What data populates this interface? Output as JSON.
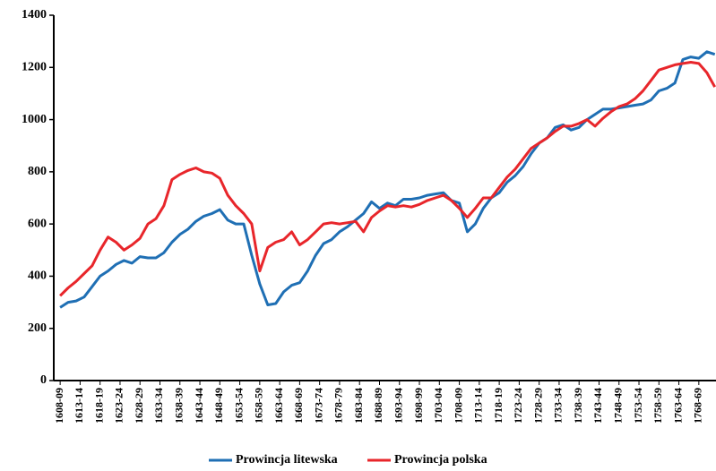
{
  "chart_data": {
    "type": "line",
    "x": [
      1608,
      1610,
      1612,
      1614,
      1616,
      1618,
      1620,
      1622,
      1624,
      1626,
      1628,
      1630,
      1632,
      1634,
      1636,
      1638,
      1640,
      1642,
      1644,
      1646,
      1648,
      1650,
      1652,
      1654,
      1656,
      1658,
      1660,
      1662,
      1664,
      1666,
      1668,
      1670,
      1672,
      1674,
      1676,
      1678,
      1680,
      1682,
      1684,
      1686,
      1688,
      1690,
      1692,
      1694,
      1696,
      1698,
      1700,
      1702,
      1704,
      1706,
      1708,
      1710,
      1712,
      1714,
      1716,
      1718,
      1720,
      1722,
      1724,
      1726,
      1728,
      1730,
      1732,
      1734,
      1736,
      1738,
      1740,
      1742,
      1744,
      1746,
      1748,
      1750,
      1752,
      1754,
      1756,
      1758,
      1760,
      1762,
      1764,
      1766,
      1768,
      1770,
      1772
    ],
    "series": [
      {
        "name": "Prowincja litewska",
        "color": "#1f6fb4",
        "values": [
          280,
          300,
          305,
          320,
          360,
          400,
          420,
          445,
          460,
          450,
          475,
          470,
          470,
          490,
          530,
          560,
          580,
          610,
          630,
          640,
          655,
          615,
          600,
          600,
          480,
          370,
          290,
          295,
          340,
          365,
          375,
          420,
          480,
          525,
          540,
          570,
          590,
          615,
          640,
          685,
          660,
          680,
          670,
          695,
          695,
          700,
          710,
          715,
          720,
          690,
          680,
          570,
          600,
          660,
          700,
          720,
          760,
          785,
          820,
          870,
          910,
          930,
          970,
          980,
          960,
          970,
          1000,
          1020,
          1040,
          1040,
          1045,
          1050,
          1055,
          1060,
          1075,
          1110,
          1120,
          1140,
          1230,
          1240,
          1235,
          1260,
          1250
        ]
      },
      {
        "name": "Prowincja polska",
        "color": "#e8262b",
        "values": [
          325,
          355,
          380,
          410,
          440,
          500,
          550,
          530,
          500,
          520,
          545,
          600,
          620,
          670,
          770,
          790,
          805,
          815,
          800,
          795,
          775,
          710,
          670,
          640,
          600,
          420,
          510,
          530,
          540,
          570,
          520,
          540,
          570,
          600,
          605,
          600,
          605,
          610,
          570,
          625,
          650,
          670,
          665,
          670,
          665,
          675,
          690,
          700,
          710,
          690,
          660,
          625,
          660,
          700,
          700,
          740,
          780,
          810,
          850,
          890,
          910,
          930,
          955,
          975,
          975,
          985,
          1000,
          975,
          1005,
          1030,
          1050,
          1060,
          1080,
          1110,
          1150,
          1190,
          1200,
          1210,
          1215,
          1220,
          1215,
          1180,
          1125
        ]
      }
    ],
    "xlim": [
      1606.4,
      1772.3
    ],
    "xticks": [
      {
        "value": 1608,
        "label": "1608-09"
      },
      {
        "value": 1613,
        "label": "1613-14"
      },
      {
        "value": 1618,
        "label": "1618-19"
      },
      {
        "value": 1623,
        "label": "1623-24"
      },
      {
        "value": 1628,
        "label": "1628-29"
      },
      {
        "value": 1633,
        "label": "1633-34"
      },
      {
        "value": 1638,
        "label": "1638-39"
      },
      {
        "value": 1643,
        "label": "1643-44"
      },
      {
        "value": 1648,
        "label": "1648-49"
      },
      {
        "value": 1653,
        "label": "1653-54"
      },
      {
        "value": 1658,
        "label": "1658-59"
      },
      {
        "value": 1663,
        "label": "1663-64"
      },
      {
        "value": 1668,
        "label": "1668-69"
      },
      {
        "value": 1673,
        "label": "1673-74"
      },
      {
        "value": 1678,
        "label": "1678-79"
      },
      {
        "value": 1683,
        "label": "1683-84"
      },
      {
        "value": 1688,
        "label": "1688-89"
      },
      {
        "value": 1693,
        "label": "1693-94"
      },
      {
        "value": 1698,
        "label": "1698-99"
      },
      {
        "value": 1703,
        "label": "1703-04"
      },
      {
        "value": 1708,
        "label": "1708-09"
      },
      {
        "value": 1713,
        "label": "1713-14"
      },
      {
        "value": 1718,
        "label": "1718-19"
      },
      {
        "value": 1723,
        "label": "1723-24"
      },
      {
        "value": 1728,
        "label": "1728-29"
      },
      {
        "value": 1733,
        "label": "1733-34"
      },
      {
        "value": 1738,
        "label": "1738-39"
      },
      {
        "value": 1743,
        "label": "1743-44"
      },
      {
        "value": 1748,
        "label": "1748-49"
      },
      {
        "value": 1753,
        "label": "1753-54"
      },
      {
        "value": 1758,
        "label": "1758-59"
      },
      {
        "value": 1763,
        "label": "1763-64"
      },
      {
        "value": 1768,
        "label": "1768-69"
      }
    ],
    "ylim": [
      0,
      1400
    ],
    "yticks": [
      0,
      200,
      400,
      600,
      800,
      1000,
      1200,
      1400
    ],
    "legend": "bottom"
  }
}
